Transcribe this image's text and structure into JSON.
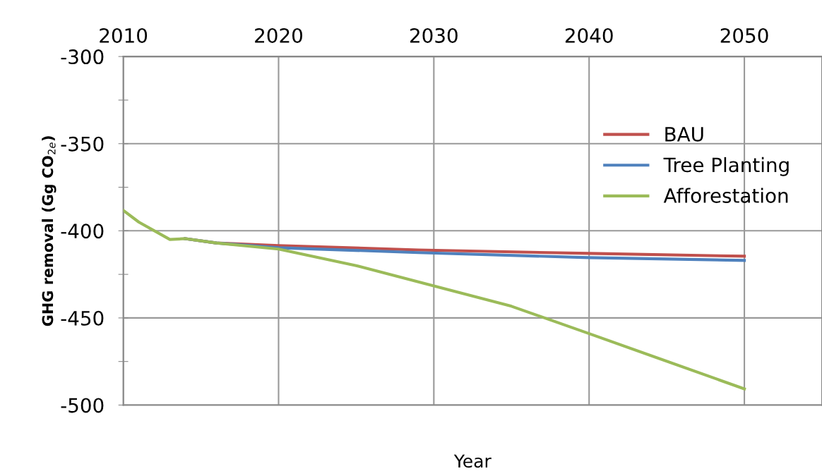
{
  "chart_data": {
    "type": "line",
    "xlabel": "Year",
    "ylabel": "GHG removal (Gg CO$_{2e}$)",
    "xlim": [
      2010,
      2055
    ],
    "xticks": [
      2010,
      2020,
      2030,
      2040,
      2050
    ],
    "ylim": [
      -500,
      -300
    ],
    "yticks": [
      -500,
      {
        "value": -475,
        "label": null
      },
      -450,
      {
        "value": -425,
        "label": null
      },
      -400,
      {
        "value": -375,
        "label": null
      },
      -350,
      {
        "value": -325,
        "label": null
      },
      -300
    ],
    "grid": true,
    "legend": "top right",
    "marker": "none",
    "line_style": "solid",
    "series": [
      {
        "name": "BAU",
        "color": "#c0504d",
        "x": [
          2014,
          2016,
          2020,
          2029,
          2040,
          2050
        ],
        "values": [
          -404.5,
          -407,
          -408.5,
          -411,
          -413,
          -414.6
        ]
      },
      {
        "name": "Tree Planting",
        "color": "#4f81bd",
        "x": [
          2014,
          2016,
          2020,
          2029,
          2040,
          2050
        ],
        "values": [
          -404.5,
          -407,
          -409.7,
          -412.5,
          -415.4,
          -417
        ]
      },
      {
        "name": "Afforestation",
        "color": "#9bbb59",
        "x": [
          2010,
          2011,
          2013,
          2014,
          2016,
          2020,
          2025,
          2030,
          2035,
          2040,
          2050
        ],
        "values": [
          -388.3,
          -395,
          -405,
          -404.5,
          -407,
          -410.5,
          -420,
          -431.6,
          -443.3,
          -459,
          -490.7
        ]
      }
    ]
  }
}
